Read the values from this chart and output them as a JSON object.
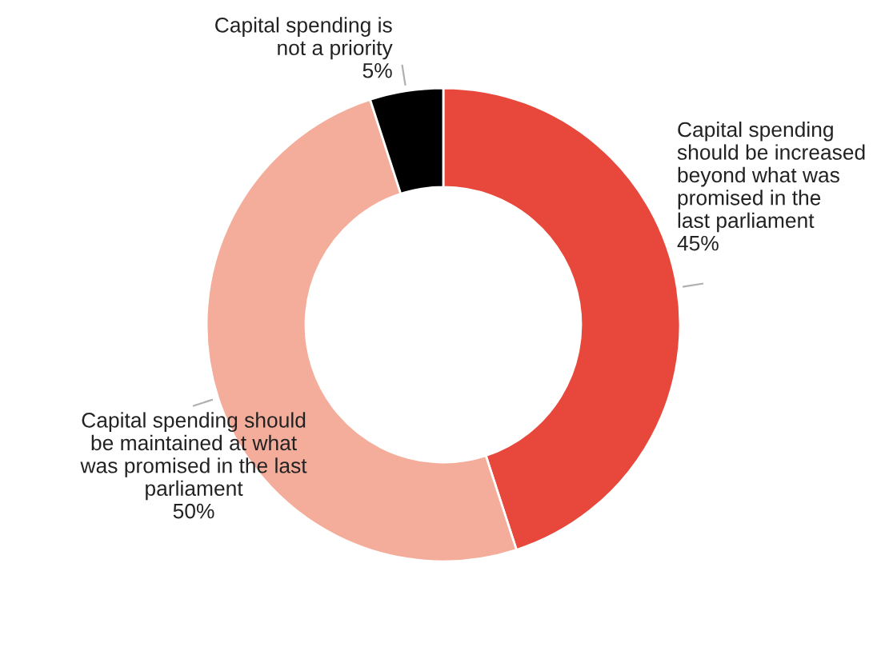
{
  "chart_data": {
    "type": "donut",
    "categories": [
      "Capital spending\nshould be increased\nbeyond what was\npromised in the\nlast parliament",
      "Capital spending should\nbe maintained at what\nwas promised in the last\nparliament",
      "Capital spending is\nnot a priority"
    ],
    "values": [
      45,
      50,
      5
    ],
    "value_labels": [
      "45%",
      "50%",
      "5%"
    ],
    "colors": [
      "#e8483c",
      "#f5ad9b",
      "#000000"
    ],
    "legend": false
  }
}
